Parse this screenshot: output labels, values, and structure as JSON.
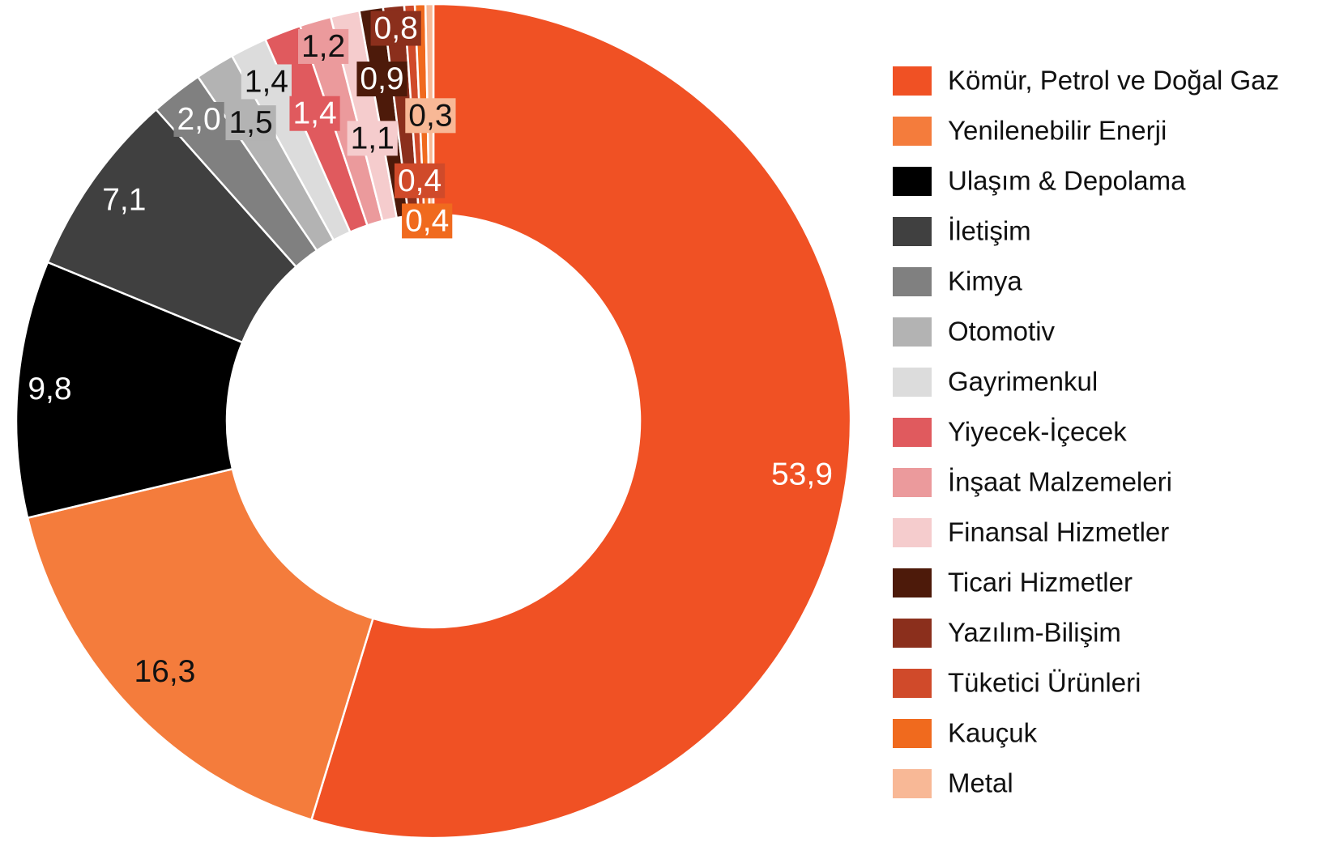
{
  "chart_data": {
    "type": "donut",
    "categories": [
      "Kömür, Petrol ve Doğal Gaz",
      "Yenilenebilir Enerji",
      "Ulaşım & Depolama",
      "İletişim",
      "Kimya",
      "Otomotiv",
      "Gayrimenkul",
      "Yiyecek-İçecek",
      "İnşaat Malzemeleri",
      "Finansal Hizmetler",
      "Ticari Hizmetler",
      "Yazılım-Bilişim",
      "Tüketici Ürünleri",
      "Kauçuk",
      "Metal"
    ],
    "values": [
      53.9,
      16.3,
      9.8,
      7.1,
      2.0,
      1.5,
      1.4,
      1.4,
      1.2,
      1.1,
      0.9,
      0.8,
      0.4,
      0.4,
      0.3
    ],
    "value_labels": [
      "53,9",
      "16,3",
      "9,8",
      "7,1",
      "2,0",
      "1,5",
      "1,4",
      "1,4",
      "1,2",
      "1,1",
      "0,9",
      "0,8",
      "0,4",
      "0,4",
      "0,3"
    ],
    "colors": [
      "#f05124",
      "#f47c3c",
      "#000000",
      "#404040",
      "#808080",
      "#b3b3b3",
      "#dcdcdc",
      "#e05a5e",
      "#eb9a9c",
      "#f5cccd",
      "#4d1a0a",
      "#8b2f1c",
      "#d04a2a",
      "#f06a1e",
      "#f8b896"
    ],
    "legend": "right"
  }
}
